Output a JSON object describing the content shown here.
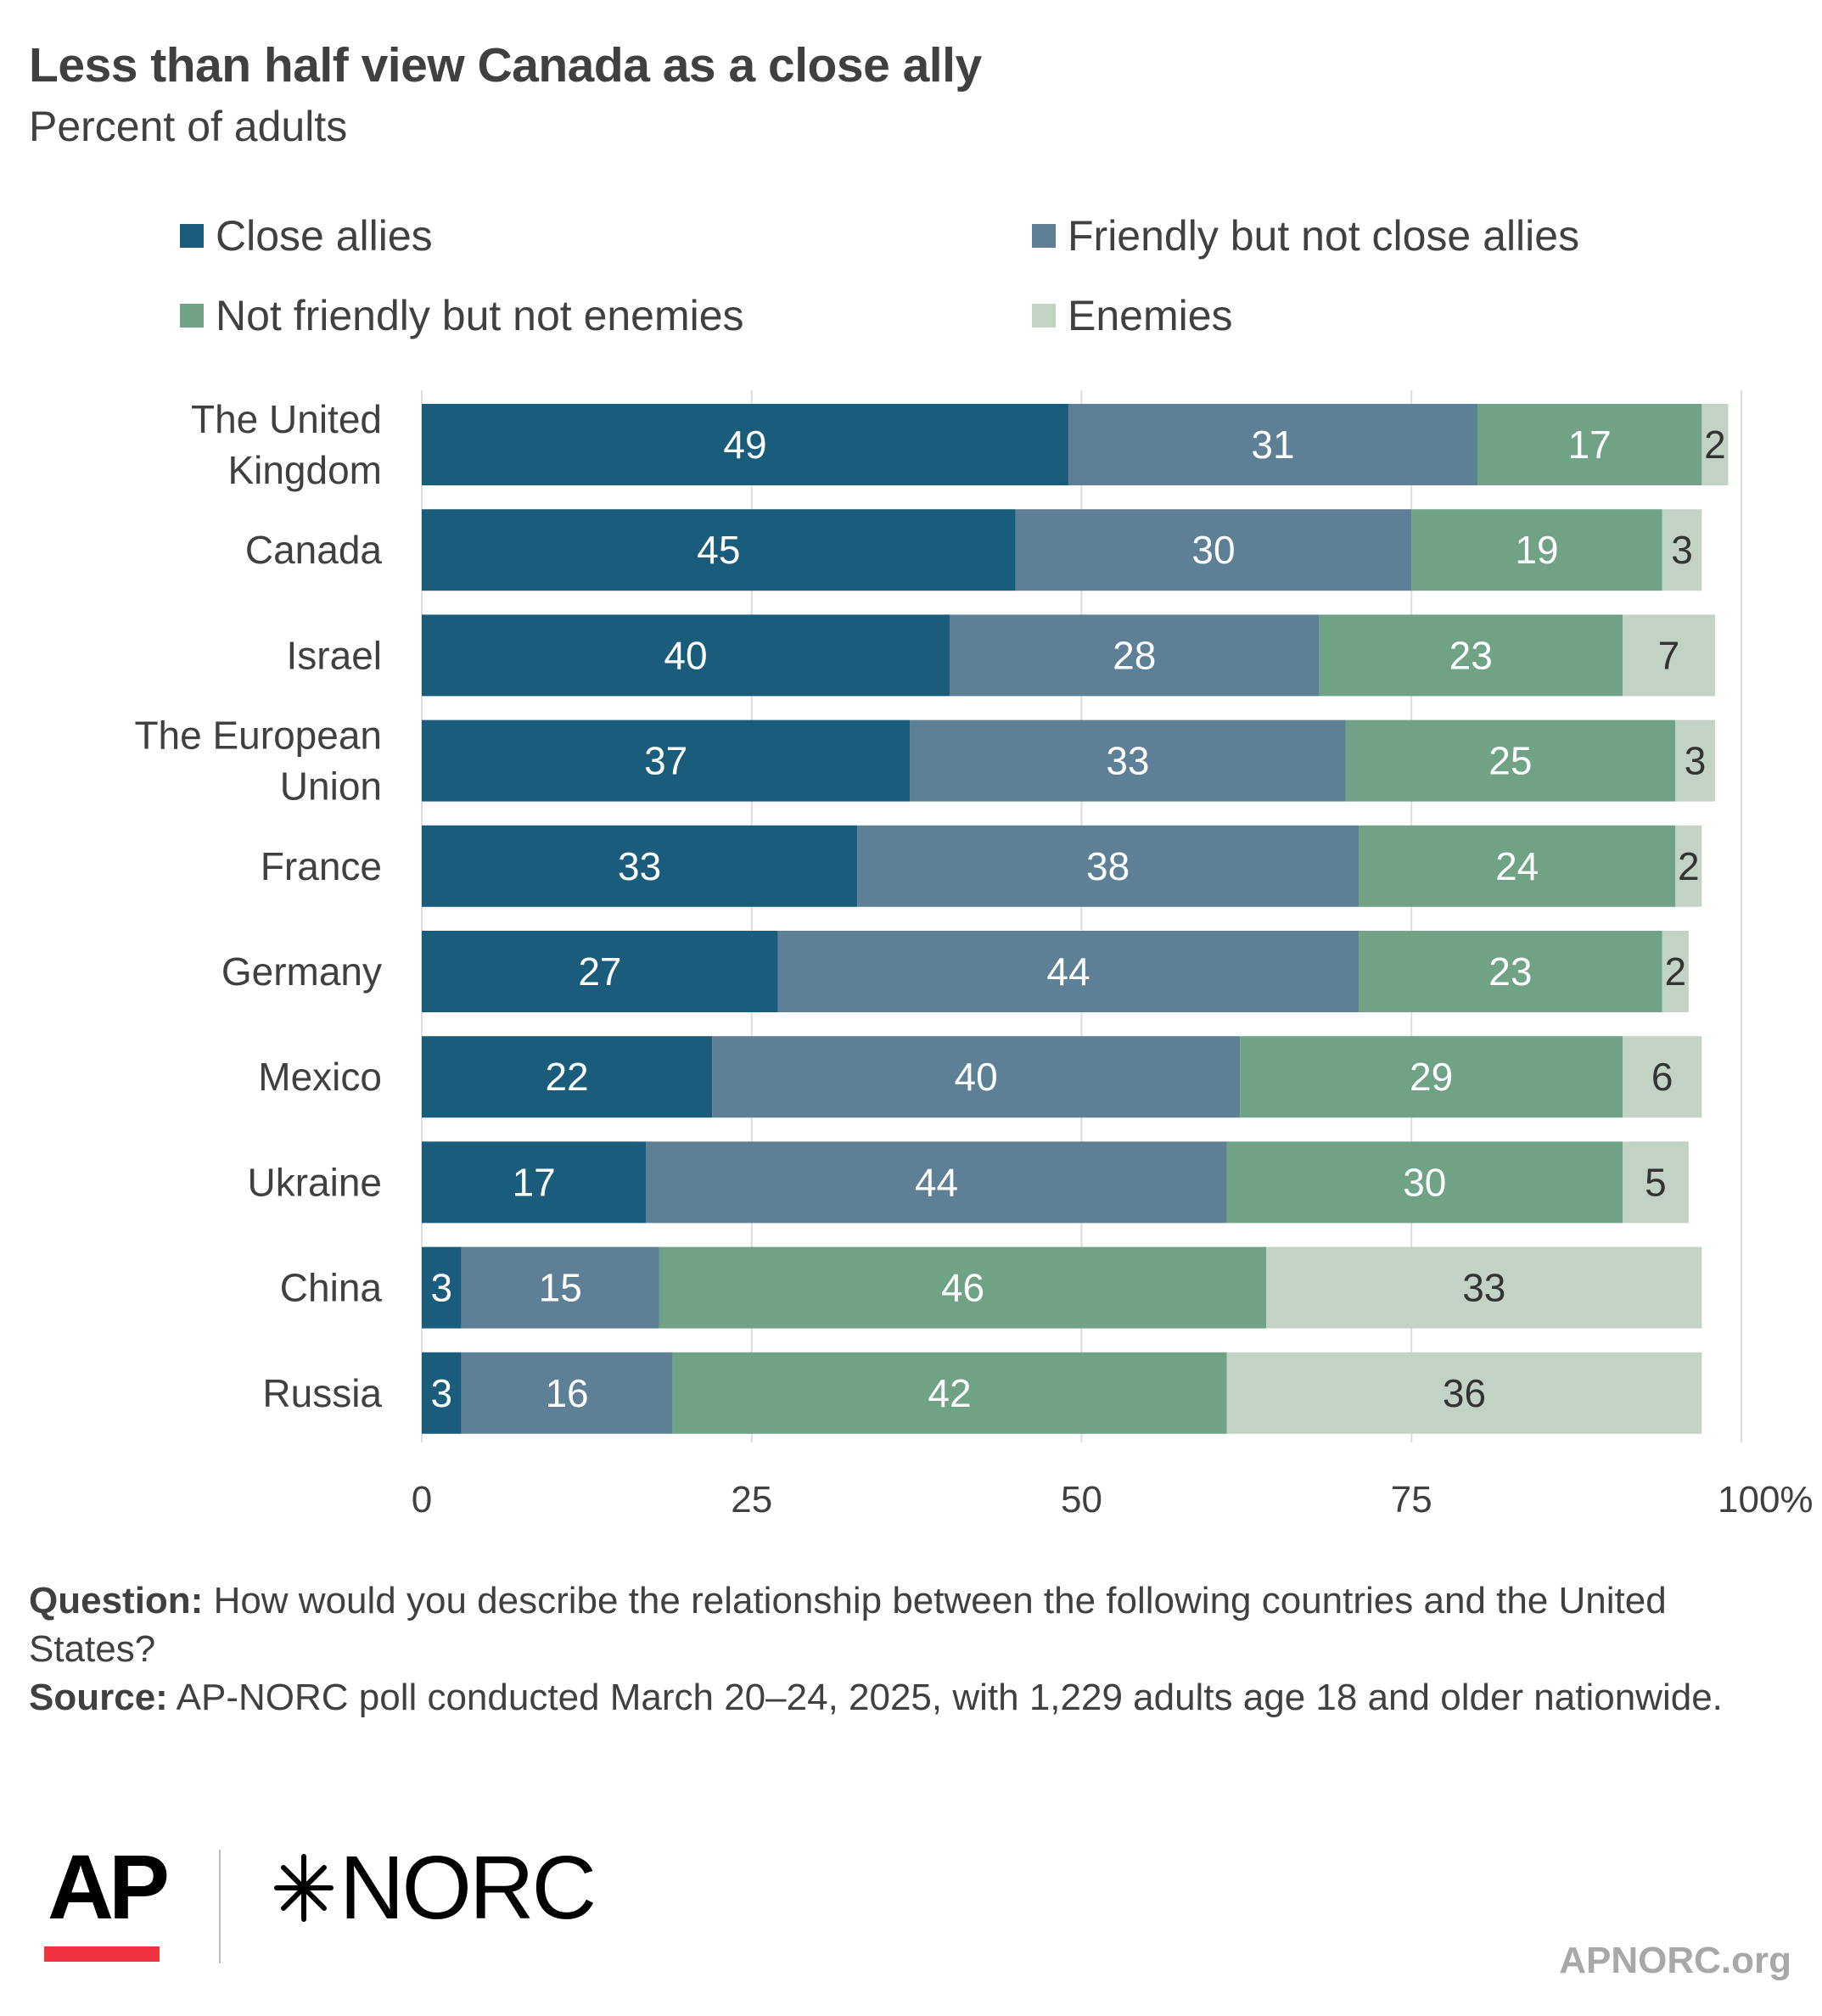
{
  "header": {
    "title": "Less than half view Canada as a close ally",
    "subtitle": "Percent of adults"
  },
  "colors": {
    "close_allies": "#1a5c7c",
    "friendly": "#5d8096",
    "not_friendly": "#70a385",
    "enemies": "#c2d2c4",
    "grid": "#dddddd"
  },
  "legend": [
    {
      "label": "Close allies",
      "color": "#1a5c7c"
    },
    {
      "label": "Friendly but not close allies",
      "color": "#5d8096"
    },
    {
      "label": "Not friendly but not enemies",
      "color": "#70a385"
    },
    {
      "label": "Enemies",
      "color": "#c2d2c4"
    }
  ],
  "chart_data": {
    "type": "bar",
    "orientation": "horizontal",
    "stacked": true,
    "title": "Less than half view Canada as a close ally",
    "subtitle": "Percent of adults",
    "categories": [
      "The United Kingdom",
      "Canada",
      "Israel",
      "The European Union",
      "France",
      "Germany",
      "Mexico",
      "Ukraine",
      "China",
      "Russia"
    ],
    "category_lines": [
      [
        "The United",
        "Kingdom"
      ],
      [
        "Canada"
      ],
      [
        "Israel"
      ],
      [
        "The European",
        "Union"
      ],
      [
        "France"
      ],
      [
        "Germany"
      ],
      [
        "Mexico"
      ],
      [
        "Ukraine"
      ],
      [
        "China"
      ],
      [
        "Russia"
      ]
    ],
    "series": [
      {
        "name": "Close allies",
        "values": [
          49,
          45,
          40,
          37,
          33,
          27,
          22,
          17,
          3,
          3
        ]
      },
      {
        "name": "Friendly but not close allies",
        "values": [
          31,
          30,
          28,
          33,
          38,
          44,
          40,
          44,
          15,
          16
        ]
      },
      {
        "name": "Not friendly but not enemies",
        "values": [
          17,
          19,
          23,
          25,
          24,
          23,
          29,
          30,
          46,
          42
        ]
      },
      {
        "name": "Enemies",
        "values": [
          2,
          3,
          7,
          3,
          2,
          2,
          6,
          5,
          33,
          36
        ]
      }
    ],
    "x_ticks": [
      "0",
      "25",
      "50",
      "75",
      "100%"
    ],
    "xlim": [
      0,
      100
    ],
    "grid": true,
    "legend_position": "top"
  },
  "footnote": {
    "question_label": "Question:",
    "question_text": "How would you describe the relationship between the following countries and the United States?",
    "source_label": "Source:",
    "source_text": "AP-NORC poll conducted March 20–24, 2025, with 1,229 adults age 18 and older nationwide."
  },
  "logos": {
    "ap": "AP",
    "norc": "NORC",
    "site": "APNORC.org"
  }
}
